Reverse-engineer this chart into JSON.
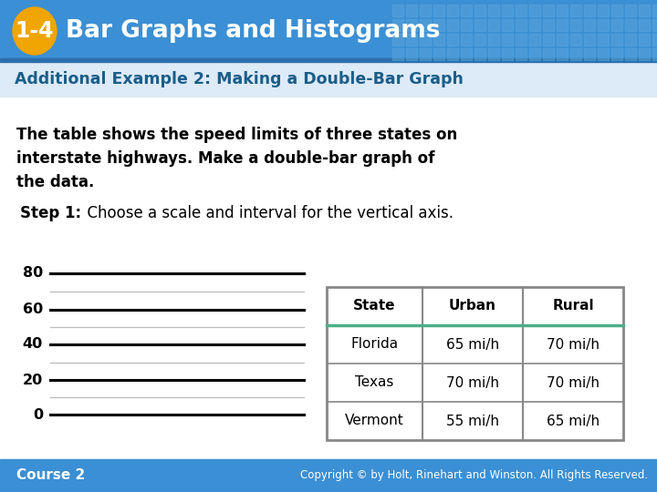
{
  "header_bg_color": "#3b8fd4",
  "header_text": "Bar Graphs and Histograms",
  "badge_bg": "#f0a500",
  "badge_text": "1-4",
  "subheader_text": "Additional Example 2: Making a Double-Bar Graph",
  "subheader_color": "#1a5e8a",
  "body_text_line1": "The table shows the speed limits of three states on",
  "body_text_line2": "interstate highways. Make a double-bar graph of",
  "body_text_line3": "the data.",
  "step_bold": "Step 1:",
  "step_rest": "  Choose a scale and interval for the vertical axis.",
  "axis_labels": [
    80,
    60,
    40,
    20,
    0
  ],
  "table_headers": [
    "State",
    "Urban",
    "Rural"
  ],
  "table_rows": [
    [
      "Florida",
      "65 mi/h",
      "70 mi/h"
    ],
    [
      "Texas",
      "70 mi/h",
      "70 mi/h"
    ],
    [
      "Vermont",
      "55 mi/h",
      "65 mi/h"
    ]
  ],
  "table_border_color": "#888888",
  "table_green_line": "#4caf8a",
  "footer_bg": "#3b8fd4",
  "footer_left": "Course 2",
  "footer_right": "Copyright © by Holt, Rinehart and Winston. All Rights Reserved.",
  "bg_color": "#eef4fb",
  "body_bg_color": "#ffffff",
  "body_text_color": "#000000",
  "header_grid_color": "#5fa8dc"
}
